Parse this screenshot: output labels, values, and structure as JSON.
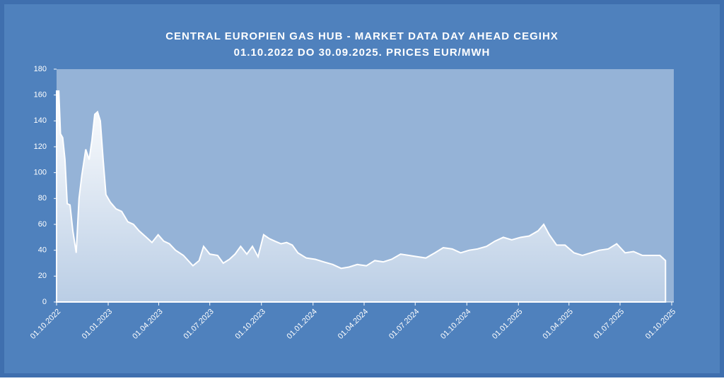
{
  "chart_data": {
    "type": "area",
    "title": "CENTRAL EUROPIEN GAS HUB - MARKET DATA DAY AHEAD CEGIHX",
    "subtitle": "01.10.2022 DO 30.09.2025. PRICES EUR/MWH",
    "x": [
      "01.10.2022",
      "05.10.2022",
      "08.10.2022",
      "12.10.2022",
      "16.10.2022",
      "20.10.2022",
      "25.10.2022",
      "30.10.2022",
      "05.11.2022",
      "10.11.2022",
      "15.11.2022",
      "22.11.2022",
      "28.11.2022",
      "03.12.2022",
      "08.12.2022",
      "13.12.2022",
      "18.12.2022",
      "23.12.2022",
      "28.12.2022",
      "05.01.2023",
      "15.01.2023",
      "25.01.2023",
      "05.02.2023",
      "15.02.2023",
      "25.02.2023",
      "10.03.2023",
      "20.03.2023",
      "31.03.2023",
      "10.04.2023",
      "20.04.2023",
      "01.05.2023",
      "15.05.2023",
      "01.06.2023",
      "12.06.2023",
      "20.06.2023",
      "01.07.2023",
      "15.07.2023",
      "25.07.2023",
      "05.08.2023",
      "15.08.2023",
      "25.08.2023",
      "05.09.2023",
      "15.09.2023",
      "25.09.2023",
      "05.10.2023",
      "15.10.2023",
      "25.10.2023",
      "05.11.2023",
      "15.11.2023",
      "25.11.2023",
      "05.12.2023",
      "20.12.2023",
      "05.01.2024",
      "20.01.2024",
      "05.02.2024",
      "20.02.2024",
      "05.03.2024",
      "20.03.2024",
      "05.04.2024",
      "20.04.2024",
      "05.05.2024",
      "20.05.2024",
      "05.06.2024",
      "20.06.2024",
      "05.07.2024",
      "20.07.2024",
      "05.08.2024",
      "20.08.2024",
      "05.09.2024",
      "20.09.2024",
      "05.10.2024",
      "20.10.2024",
      "05.11.2024",
      "20.11.2024",
      "05.12.2024",
      "20.12.2024",
      "05.01.2025",
      "20.01.2025",
      "05.02.2025",
      "15.02.2025",
      "25.02.2025",
      "10.03.2025",
      "25.03.2025",
      "10.04.2025",
      "25.04.2025",
      "10.05.2025",
      "25.05.2025",
      "10.06.2025",
      "25.06.2025",
      "10.07.2025",
      "25.07.2025",
      "10.08.2025",
      "25.08.2025",
      "10.09.2025",
      "20.09.2025"
    ],
    "values": [
      163,
      163,
      130,
      127,
      110,
      76,
      75,
      55,
      38,
      80,
      98,
      118,
      110,
      125,
      145,
      147,
      140,
      110,
      83,
      77,
      72,
      70,
      62,
      60,
      55,
      50,
      46,
      52,
      47,
      45,
      40,
      36,
      28,
      32,
      43,
      37,
      36,
      30,
      33,
      37,
      43,
      37,
      43,
      35,
      52,
      49,
      47,
      45,
      46,
      44,
      38,
      34,
      33,
      31,
      29,
      26,
      27,
      29,
      28,
      32,
      31,
      33,
      37,
      36,
      35,
      34,
      38,
      42,
      41,
      38,
      40,
      41,
      43,
      47,
      50,
      48,
      50,
      51,
      55,
      60,
      52,
      44,
      44,
      38,
      36,
      38,
      40,
      41,
      45,
      38,
      39,
      36,
      36,
      36,
      32
    ],
    "color": "#ffffff",
    "ylim": [
      0,
      180
    ],
    "yticks": [
      0,
      20,
      40,
      60,
      80,
      100,
      120,
      140,
      160,
      180
    ],
    "xlim": [
      "01.10.2022",
      "01.10.2025"
    ],
    "xticks": [
      "01.10.2022",
      "01.01.2023",
      "01.04.2023",
      "01.07.2023",
      "01.10.2023",
      "01.01.2024",
      "01.04.2024",
      "01.07.2024",
      "01.10.2024",
      "01.01.2025",
      "01.04.2025",
      "01.07.2025",
      "01.10.2025"
    ]
  }
}
